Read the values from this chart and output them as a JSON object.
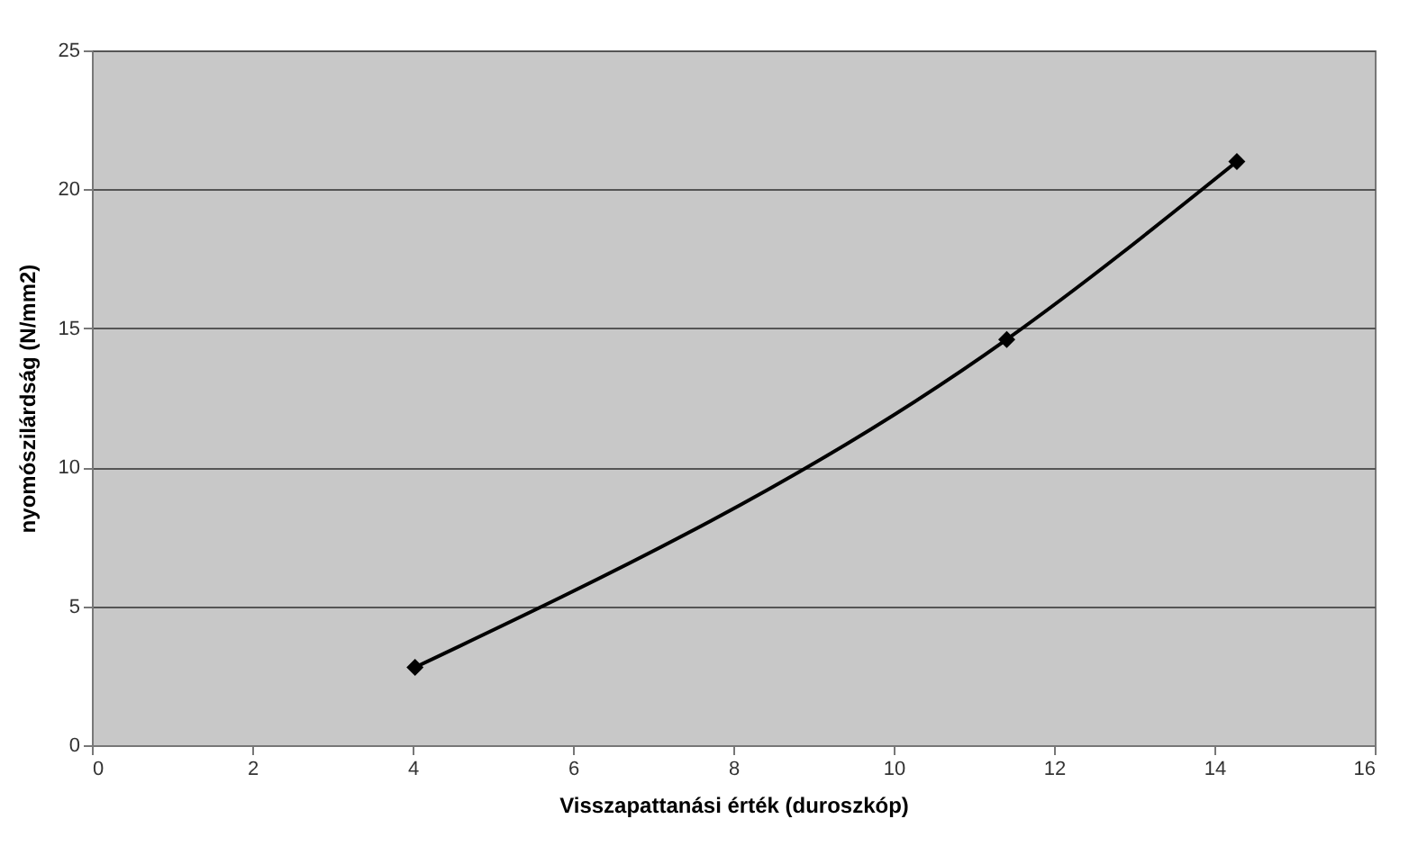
{
  "chart_data": {
    "type": "line",
    "xlabel": "Visszapattanási érték (duroszkóp)",
    "ylabel": "nyomószilárdság (N/mm2)",
    "series": [
      {
        "color": "#000000",
        "x": [
          4.03,
          11.41,
          14.28
        ],
        "values": [
          2.8,
          14.6,
          21.0
        ]
      }
    ],
    "xlim": [
      0,
      16
    ],
    "xticks": [
      0,
      2,
      4,
      6,
      8,
      10,
      12,
      14,
      16
    ],
    "ylim": [
      0,
      25
    ],
    "yticks": [
      0,
      5,
      10,
      15,
      20,
      25
    ],
    "grid": "y",
    "marker": "diamond",
    "line_style": "solid"
  }
}
